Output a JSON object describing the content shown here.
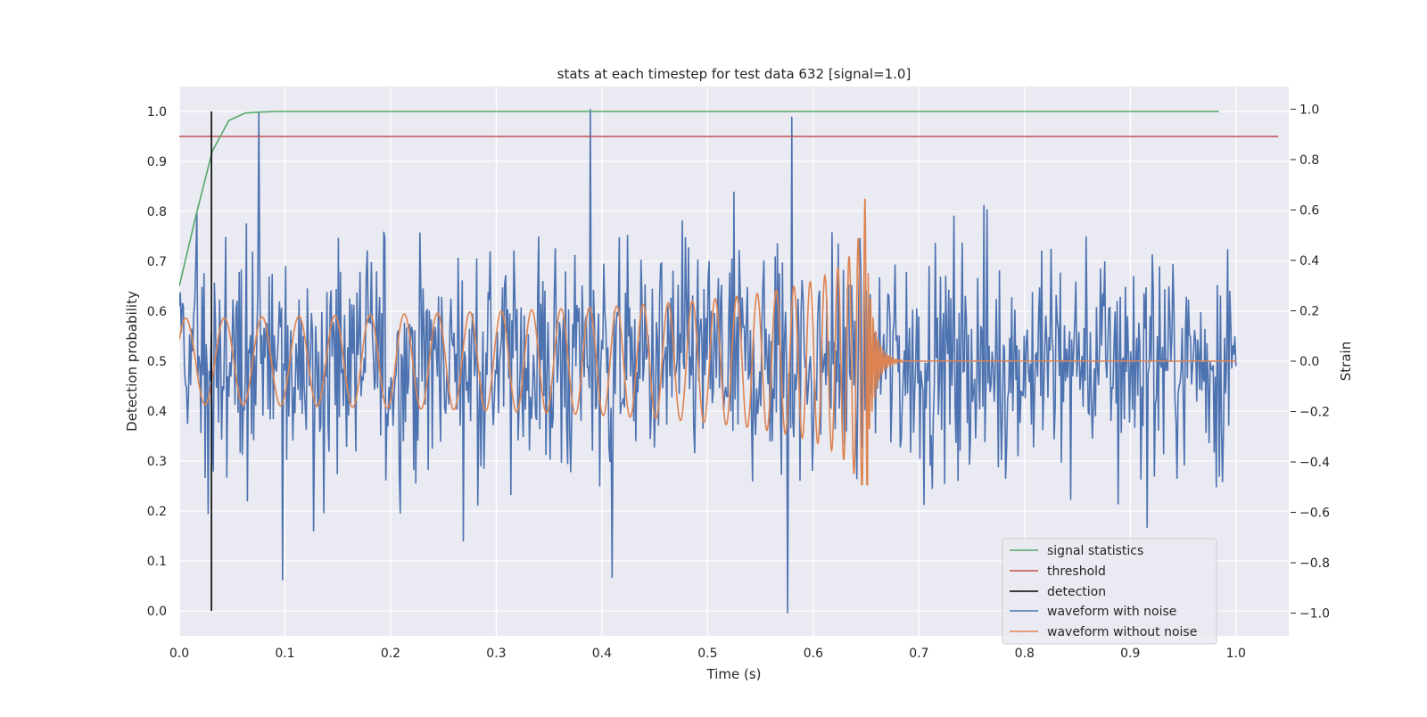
{
  "chart_data": {
    "type": "line",
    "title": "stats at each timestep for test data 632 [signal=1.0]",
    "xlabel": "Time (s)",
    "ylabel": "Detection probability",
    "y2label": "Strain",
    "xlim": [
      0.0,
      1.05
    ],
    "ylim": [
      -0.05,
      1.05
    ],
    "y2lim": [
      -1.09,
      1.09
    ],
    "xticks": [
      "0.0",
      "0.1",
      "0.2",
      "0.3",
      "0.4",
      "0.5",
      "0.6",
      "0.7",
      "0.8",
      "0.9",
      "1.0"
    ],
    "yticks": [
      "0.0",
      "0.1",
      "0.2",
      "0.3",
      "0.4",
      "0.5",
      "0.6",
      "0.7",
      "0.8",
      "0.9",
      "1.0"
    ],
    "y2ticks": [
      "−1.0",
      "−0.8",
      "−0.6",
      "−0.4",
      "−0.2",
      "0.0",
      "0.2",
      "0.4",
      "0.6",
      "0.8",
      "1.0"
    ],
    "grid": true,
    "legend_position": "lower-right",
    "colors": {
      "signal_statistics": "#55a868",
      "threshold": "#c44e52",
      "detection": "#000000",
      "waveform_with_noise": "#4c72b0",
      "waveform_without_noise": "#dd8452",
      "axes_background": "#eaeaf2",
      "grid": "#ffffff"
    },
    "series": [
      {
        "name": "signal statistics",
        "axis": "left",
        "x": [
          0.0,
          0.0156,
          0.0312,
          0.0469,
          0.0625,
          0.0781,
          0.0938,
          0.25,
          0.5,
          0.75,
          0.984
        ],
        "y": [
          0.65,
          0.79,
          0.92,
          0.982,
          0.997,
          0.999,
          1.0,
          1.0,
          1.0,
          1.0,
          1.0
        ]
      },
      {
        "name": "threshold",
        "axis": "left",
        "x": [
          0.0,
          1.04
        ],
        "y": [
          0.95,
          0.95
        ]
      },
      {
        "name": "detection",
        "axis": "left",
        "x": [
          0.0305,
          0.0305
        ],
        "y": [
          0.0,
          1.0
        ]
      },
      {
        "name": "waveform with noise",
        "axis": "right",
        "points": 1024,
        "x_range": [
          0.0,
          1.0
        ],
        "y_range": [
          -1.0,
          1.0
        ],
        "approx_std": 0.33,
        "notable_peaks": [
          [
            0.389,
            1.0
          ],
          [
            0.58,
            0.97
          ],
          [
            0.075,
            0.99
          ],
          [
            0.576,
            -1.0
          ],
          [
            0.098,
            -0.87
          ],
          [
            0.41,
            -0.86
          ]
        ]
      },
      {
        "name": "waveform without noise",
        "axis": "right",
        "model": "inspiral chirp",
        "x_range": [
          0.0,
          1.0
        ],
        "merger_time": 0.652,
        "early_amplitude": 0.17,
        "peak_amplitude": 0.7,
        "peak_min": -0.49,
        "start_frequency_hz": 27,
        "ringdown_end": 0.685
      }
    ]
  }
}
